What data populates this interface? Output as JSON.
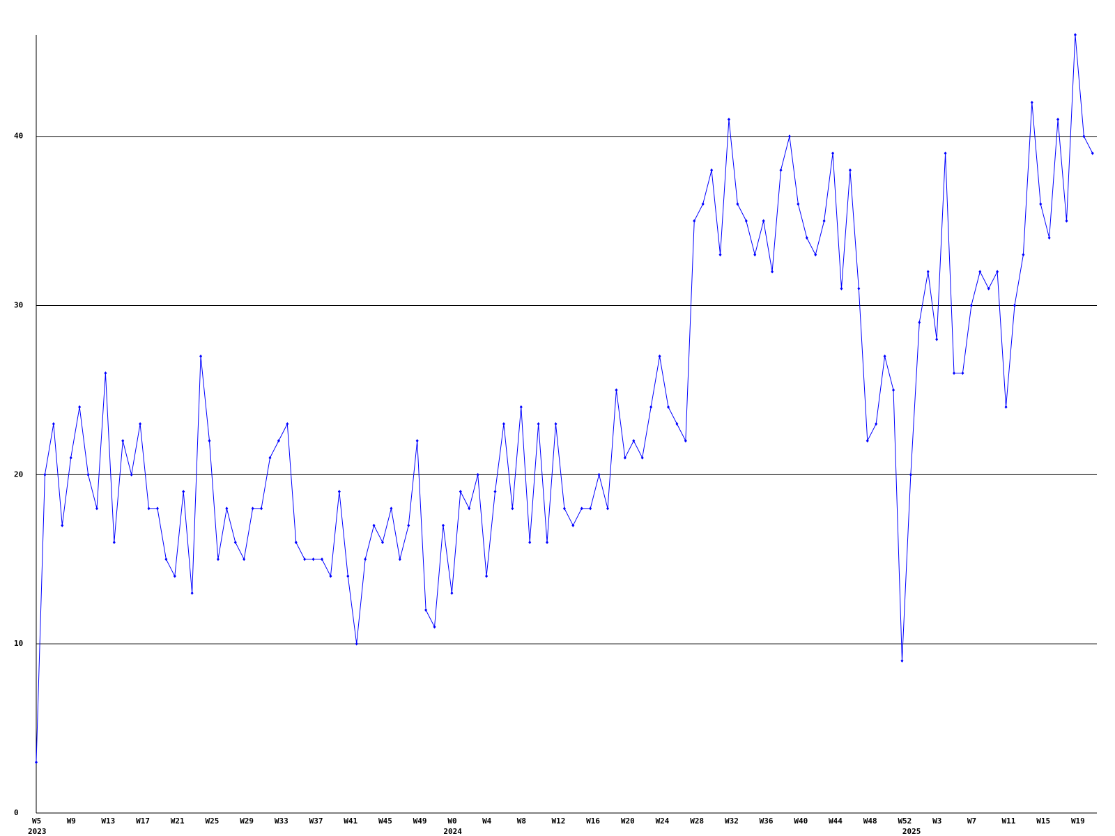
{
  "chart_data": {
    "type": "line",
    "categories": [
      "W5",
      null,
      null,
      null,
      "W9",
      null,
      null,
      null,
      "W13",
      null,
      null,
      null,
      "W17",
      null,
      null,
      null,
      "W21",
      null,
      null,
      null,
      "W25",
      null,
      null,
      null,
      "W29",
      null,
      null,
      null,
      "W33",
      null,
      null,
      null,
      "W37",
      null,
      null,
      null,
      "W41",
      null,
      null,
      null,
      "W45",
      null,
      null,
      null,
      "W49",
      null,
      null,
      null,
      "W0",
      null,
      null,
      null,
      "W4",
      null,
      null,
      null,
      "W8",
      null,
      null,
      null,
      "W12",
      null,
      null,
      null,
      "W16",
      null,
      null,
      null,
      "W20",
      null,
      null,
      null,
      "W24",
      null,
      null,
      null,
      "W28",
      null,
      null,
      null,
      "W32",
      null,
      null,
      null,
      "W36",
      null,
      null,
      null,
      "W40",
      null,
      null,
      null,
      "W44",
      null,
      null,
      null,
      "W48",
      null,
      null,
      null,
      "W52",
      null,
      null,
      null,
      "W3",
      null,
      null,
      null,
      "W7",
      null,
      null,
      null,
      "W11",
      null,
      null,
      null,
      "W15",
      null,
      null,
      null,
      "W19",
      null,
      null
    ],
    "year_labels": [
      "2023",
      null,
      null,
      null,
      null,
      null,
      null,
      null,
      null,
      null,
      null,
      null,
      null,
      null,
      null,
      null,
      null,
      null,
      null,
      null,
      null,
      null,
      null,
      null,
      null,
      null,
      null,
      null,
      null,
      null,
      null,
      null,
      null,
      null,
      null,
      null,
      null,
      null,
      null,
      null,
      null,
      null,
      null,
      null,
      null,
      null,
      null,
      null,
      "2024",
      null,
      null,
      null,
      null,
      null,
      null,
      null,
      null,
      null,
      null,
      null,
      null,
      null,
      null,
      null,
      null,
      null,
      null,
      null,
      null,
      null,
      null,
      null,
      null,
      null,
      null,
      null,
      null,
      null,
      null,
      null,
      null,
      null,
      null,
      null,
      null,
      null,
      null,
      null,
      null,
      null,
      null,
      null,
      null,
      null,
      null,
      null,
      null,
      null,
      null,
      null,
      null,
      "2025",
      null,
      null,
      null,
      null,
      null,
      null,
      null,
      null,
      null,
      null,
      null,
      null,
      null,
      null,
      null,
      null,
      null,
      null,
      null,
      null,
      null
    ],
    "series": [
      {
        "color": "#0000ff",
        "values": [
          3,
          20,
          23,
          17,
          21,
          24,
          20,
          18,
          26,
          16,
          22,
          20,
          23,
          18,
          18,
          15,
          14,
          19,
          13,
          27,
          22,
          15,
          18,
          16,
          15,
          18,
          18,
          21,
          22,
          23,
          16,
          15,
          15,
          15,
          14,
          19,
          14,
          10,
          15,
          17,
          16,
          18,
          15,
          17,
          22,
          12,
          11,
          17,
          13,
          19,
          18,
          20,
          14,
          19,
          23,
          18,
          24,
          16,
          23,
          16,
          23,
          18,
          17,
          18,
          18,
          20,
          18,
          25,
          21,
          22,
          21,
          24,
          27,
          24,
          23,
          22,
          35,
          36,
          38,
          33,
          41,
          36,
          35,
          33,
          35,
          32,
          38,
          40,
          36,
          34,
          33,
          35,
          39,
          31,
          38,
          31,
          22,
          23,
          27,
          25,
          9,
          20,
          29,
          32,
          28,
          39,
          26,
          26,
          30,
          32,
          31,
          32,
          24,
          30,
          33,
          42,
          36,
          34,
          41,
          35,
          46,
          40,
          39
        ]
      }
    ],
    "ylim": [
      0,
      46
    ],
    "yticks": [
      0,
      10,
      20,
      30,
      40
    ],
    "grid": true
  }
}
